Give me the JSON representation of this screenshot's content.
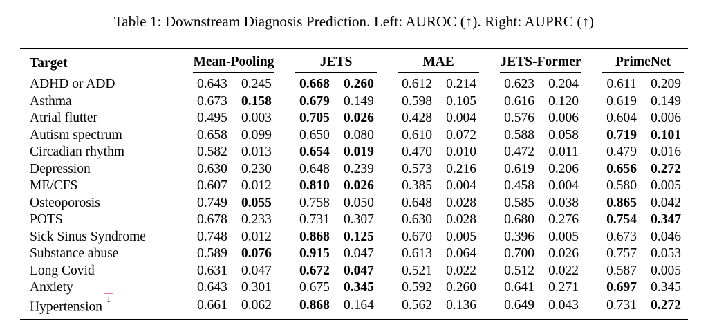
{
  "caption": "Table 1: Downstream Diagnosis Prediction. Left: AUROC (↑). Right: AUPRC (↑)",
  "colors": {
    "text": "#000000",
    "background": "#ffffff",
    "rule": "#000000",
    "footnote_box": "#f47c7c"
  },
  "table": {
    "target_header": "Target",
    "groups": [
      "Mean-Pooling",
      "JETS",
      "MAE",
      "JETS-Former",
      "PrimeNet"
    ],
    "subcolumns_per_group": [
      "AUROC",
      "AUPRC"
    ],
    "rows": [
      {
        "target": "ADHD or ADD",
        "values": [
          "0.643",
          "0.245",
          "0.668",
          "0.260",
          "0.612",
          "0.214",
          "0.623",
          "0.204",
          "0.611",
          "0.209"
        ],
        "bold": [
          0,
          0,
          1,
          1,
          0,
          0,
          0,
          0,
          0,
          0
        ]
      },
      {
        "target": "Asthma",
        "values": [
          "0.673",
          "0.158",
          "0.679",
          "0.149",
          "0.598",
          "0.105",
          "0.616",
          "0.120",
          "0.619",
          "0.149"
        ],
        "bold": [
          0,
          1,
          1,
          0,
          0,
          0,
          0,
          0,
          0,
          0
        ]
      },
      {
        "target": "Atrial flutter",
        "values": [
          "0.495",
          "0.003",
          "0.705",
          "0.026",
          "0.428",
          "0.004",
          "0.576",
          "0.006",
          "0.604",
          "0.006"
        ],
        "bold": [
          0,
          0,
          1,
          1,
          0,
          0,
          0,
          0,
          0,
          0
        ]
      },
      {
        "target": "Autism spectrum",
        "values": [
          "0.658",
          "0.099",
          "0.650",
          "0.080",
          "0.610",
          "0.072",
          "0.588",
          "0.058",
          "0.719",
          "0.101"
        ],
        "bold": [
          0,
          0,
          0,
          0,
          0,
          0,
          0,
          0,
          1,
          1
        ]
      },
      {
        "target": "Circadian rhythm",
        "values": [
          "0.582",
          "0.013",
          "0.654",
          "0.019",
          "0.470",
          "0.010",
          "0.472",
          "0.011",
          "0.479",
          "0.016"
        ],
        "bold": [
          0,
          0,
          1,
          1,
          0,
          0,
          0,
          0,
          0,
          0
        ]
      },
      {
        "target": "Depression",
        "values": [
          "0.630",
          "0.230",
          "0.648",
          "0.239",
          "0.573",
          "0.216",
          "0.619",
          "0.206",
          "0.656",
          "0.272"
        ],
        "bold": [
          0,
          0,
          0,
          0,
          0,
          0,
          0,
          0,
          1,
          1
        ]
      },
      {
        "target": "ME/CFS",
        "values": [
          "0.607",
          "0.012",
          "0.810",
          "0.026",
          "0.385",
          "0.004",
          "0.458",
          "0.004",
          "0.580",
          "0.005"
        ],
        "bold": [
          0,
          0,
          1,
          1,
          0,
          0,
          0,
          0,
          0,
          0
        ]
      },
      {
        "target": "Osteoporosis",
        "values": [
          "0.749",
          "0.055",
          "0.758",
          "0.050",
          "0.648",
          "0.028",
          "0.585",
          "0.038",
          "0.865",
          "0.042"
        ],
        "bold": [
          0,
          1,
          0,
          0,
          0,
          0,
          0,
          0,
          1,
          0
        ]
      },
      {
        "target": "POTS",
        "values": [
          "0.678",
          "0.233",
          "0.731",
          "0.307",
          "0.630",
          "0.028",
          "0.680",
          "0.276",
          "0.754",
          "0.347"
        ],
        "bold": [
          0,
          0,
          0,
          0,
          0,
          0,
          0,
          0,
          1,
          1
        ]
      },
      {
        "target": "Sick Sinus Syndrome",
        "values": [
          "0.748",
          "0.012",
          "0.868",
          "0.125",
          "0.670",
          "0.005",
          "0.396",
          "0.005",
          "0.673",
          "0.046"
        ],
        "bold": [
          0,
          0,
          1,
          1,
          0,
          0,
          0,
          0,
          0,
          0
        ]
      },
      {
        "target": "Substance abuse",
        "values": [
          "0.589",
          "0.076",
          "0.915",
          "0.047",
          "0.613",
          "0.064",
          "0.700",
          "0.026",
          "0.757",
          "0.053"
        ],
        "bold": [
          0,
          1,
          1,
          0,
          0,
          0,
          0,
          0,
          0,
          0
        ]
      },
      {
        "target": "Long Covid",
        "values": [
          "0.631",
          "0.047",
          "0.672",
          "0.047",
          "0.521",
          "0.022",
          "0.512",
          "0.022",
          "0.587",
          "0.005"
        ],
        "bold": [
          0,
          0,
          1,
          1,
          0,
          0,
          0,
          0,
          0,
          0
        ]
      },
      {
        "target": "Anxiety",
        "values": [
          "0.643",
          "0.301",
          "0.675",
          "0.345",
          "0.592",
          "0.260",
          "0.641",
          "0.271",
          "0.697",
          "0.345"
        ],
        "bold": [
          0,
          0,
          0,
          1,
          0,
          0,
          0,
          0,
          1,
          0
        ]
      },
      {
        "target": "Hypertension",
        "footnote": "1",
        "values": [
          "0.661",
          "0.062",
          "0.868",
          "0.164",
          "0.562",
          "0.136",
          "0.649",
          "0.043",
          "0.731",
          "0.272"
        ],
        "bold": [
          0,
          0,
          1,
          0,
          0,
          0,
          0,
          0,
          0,
          1
        ]
      }
    ]
  }
}
